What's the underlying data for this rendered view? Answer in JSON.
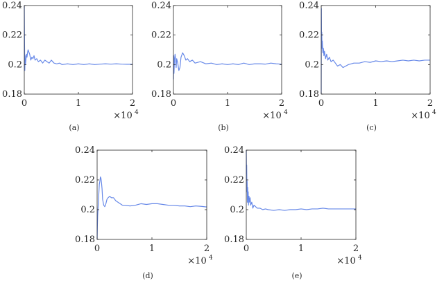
{
  "colors": {
    "series": "#6688e8"
  },
  "chart_data": [
    {
      "type": "line",
      "caption": "(a)",
      "xlim": [
        0,
        20000
      ],
      "ylim": [
        0.18,
        0.24
      ],
      "xticks": [
        0,
        1,
        2
      ],
      "x_multiplier_base": "×10",
      "x_multiplier_exp": "4",
      "yticks": [
        0.18,
        0.2,
        0.22,
        0.24
      ],
      "x": [
        0,
        50,
        100,
        150,
        200,
        300,
        400,
        500,
        600,
        700,
        800,
        1000,
        1200,
        1400,
        1600,
        1800,
        2000,
        2300,
        2600,
        3000,
        3400,
        3800,
        4200,
        4600,
        5000,
        5500,
        6000,
        6500,
        7000,
        8000,
        9000,
        10000,
        11000,
        12000,
        13000,
        14000,
        15000,
        16000,
        17000,
        18000,
        19000,
        20000
      ],
      "y": [
        0.24,
        0.214,
        0.196,
        0.206,
        0.2,
        0.203,
        0.207,
        0.205,
        0.208,
        0.21,
        0.209,
        0.207,
        0.203,
        0.205,
        0.204,
        0.206,
        0.203,
        0.204,
        0.202,
        0.203,
        0.201,
        0.203,
        0.202,
        0.201,
        0.203,
        0.201,
        0.2005,
        0.201,
        0.2,
        0.2005,
        0.2,
        0.2005,
        0.2,
        0.2005,
        0.2,
        0.2003,
        0.2005,
        0.2003,
        0.2005,
        0.2003,
        0.2002,
        0.2002
      ]
    },
    {
      "type": "line",
      "caption": "(b)",
      "xlim": [
        0,
        20000
      ],
      "ylim": [
        0.18,
        0.24
      ],
      "xticks": [
        0,
        1,
        2
      ],
      "x_multiplier_base": "×10",
      "x_multiplier_exp": "4",
      "yticks": [
        0.18,
        0.2,
        0.22,
        0.24
      ],
      "x": [
        0,
        50,
        100,
        200,
        300,
        400,
        500,
        600,
        800,
        1000,
        1200,
        1400,
        1700,
        2000,
        2300,
        2600,
        3000,
        3500,
        4000,
        5000,
        6000,
        7000,
        8000,
        9000,
        10000,
        11000,
        12000,
        13000,
        14000,
        15000,
        16000,
        17000,
        18000,
        19000,
        20000
      ],
      "y": [
        0.19,
        0.206,
        0.194,
        0.204,
        0.207,
        0.203,
        0.198,
        0.204,
        0.201,
        0.196,
        0.198,
        0.205,
        0.208,
        0.206,
        0.203,
        0.204,
        0.202,
        0.203,
        0.201,
        0.202,
        0.2005,
        0.201,
        0.2,
        0.2005,
        0.2,
        0.2005,
        0.2,
        0.201,
        0.2,
        0.2005,
        0.2005,
        0.2003,
        0.201,
        0.2005,
        0.2003
      ]
    },
    {
      "type": "line",
      "caption": "(c)",
      "xlim": [
        0,
        20000
      ],
      "ylim": [
        0.18,
        0.24
      ],
      "xticks": [
        0,
        1,
        2
      ],
      "x_multiplier_base": "×10",
      "x_multiplier_exp": "4",
      "yticks": [
        0.18,
        0.2,
        0.22,
        0.24
      ],
      "x": [
        0,
        30,
        60,
        100,
        150,
        200,
        300,
        400,
        500,
        600,
        800,
        1000,
        1200,
        1500,
        1800,
        2200,
        2600,
        3000,
        3500,
        4000,
        4500,
        5000,
        5500,
        6000,
        7000,
        8000,
        9000,
        10000,
        11000,
        12000,
        13000,
        14000,
        15000,
        16000,
        17000,
        18000,
        19000,
        20000
      ],
      "y": [
        0.18,
        0.238,
        0.214,
        0.222,
        0.211,
        0.216,
        0.208,
        0.211,
        0.206,
        0.209,
        0.204,
        0.207,
        0.203,
        0.205,
        0.202,
        0.203,
        0.201,
        0.199,
        0.2,
        0.198,
        0.199,
        0.2,
        0.2005,
        0.201,
        0.201,
        0.202,
        0.2015,
        0.2025,
        0.202,
        0.2025,
        0.202,
        0.2025,
        0.203,
        0.2025,
        0.203,
        0.2025,
        0.203,
        0.203
      ]
    },
    {
      "type": "line",
      "caption": "(d)",
      "xlim": [
        0,
        20000
      ],
      "ylim": [
        0.18,
        0.24
      ],
      "xticks": [
        0,
        1,
        2
      ],
      "x_multiplier_base": "×10",
      "x_multiplier_exp": "4",
      "yticks": [
        0.18,
        0.2,
        0.22,
        0.24
      ],
      "x": [
        0,
        50,
        100,
        200,
        300,
        400,
        500,
        600,
        700,
        800,
        900,
        1000,
        1200,
        1400,
        1600,
        1800,
        2000,
        2300,
        2600,
        3000,
        3400,
        3800,
        4200,
        4600,
        5000,
        6000,
        7000,
        8000,
        9000,
        10000,
        11000,
        12000,
        13000,
        14000,
        15000,
        16000,
        17000,
        18000,
        19000,
        20000
      ],
      "y": [
        0.18,
        0.19,
        0.196,
        0.203,
        0.21,
        0.217,
        0.219,
        0.222,
        0.221,
        0.218,
        0.214,
        0.207,
        0.203,
        0.202,
        0.204,
        0.207,
        0.208,
        0.209,
        0.208,
        0.208,
        0.206,
        0.205,
        0.204,
        0.203,
        0.203,
        0.2025,
        0.203,
        0.204,
        0.2035,
        0.204,
        0.204,
        0.2035,
        0.203,
        0.203,
        0.2025,
        0.2025,
        0.202,
        0.2025,
        0.2022,
        0.2018
      ]
    },
    {
      "type": "line",
      "caption": "(e)",
      "xlim": [
        0,
        20000
      ],
      "ylim": [
        0.18,
        0.24
      ],
      "xticks": [
        0,
        1,
        2
      ],
      "x_multiplier_base": "×10",
      "x_multiplier_exp": "4",
      "yticks": [
        0.18,
        0.2,
        0.22,
        0.24
      ],
      "x": [
        0,
        40,
        80,
        120,
        160,
        200,
        250,
        300,
        350,
        400,
        500,
        600,
        700,
        800,
        1000,
        1200,
        1400,
        1700,
        2000,
        2500,
        3000,
        3500,
        4000,
        5000,
        6000,
        7000,
        8000,
        9000,
        10000,
        11000,
        12000,
        13000,
        14000,
        15000,
        16000,
        17000,
        18000,
        19000,
        20000
      ],
      "y": [
        0.24,
        0.224,
        0.23,
        0.212,
        0.219,
        0.205,
        0.215,
        0.207,
        0.212,
        0.203,
        0.209,
        0.205,
        0.208,
        0.203,
        0.205,
        0.201,
        0.203,
        0.202,
        0.201,
        0.201,
        0.2,
        0.2005,
        0.2,
        0.1995,
        0.2,
        0.1995,
        0.2,
        0.2,
        0.2005,
        0.2,
        0.2005,
        0.2005,
        0.201,
        0.2005,
        0.2005,
        0.2005,
        0.2005,
        0.2005,
        0.2005
      ]
    }
  ]
}
